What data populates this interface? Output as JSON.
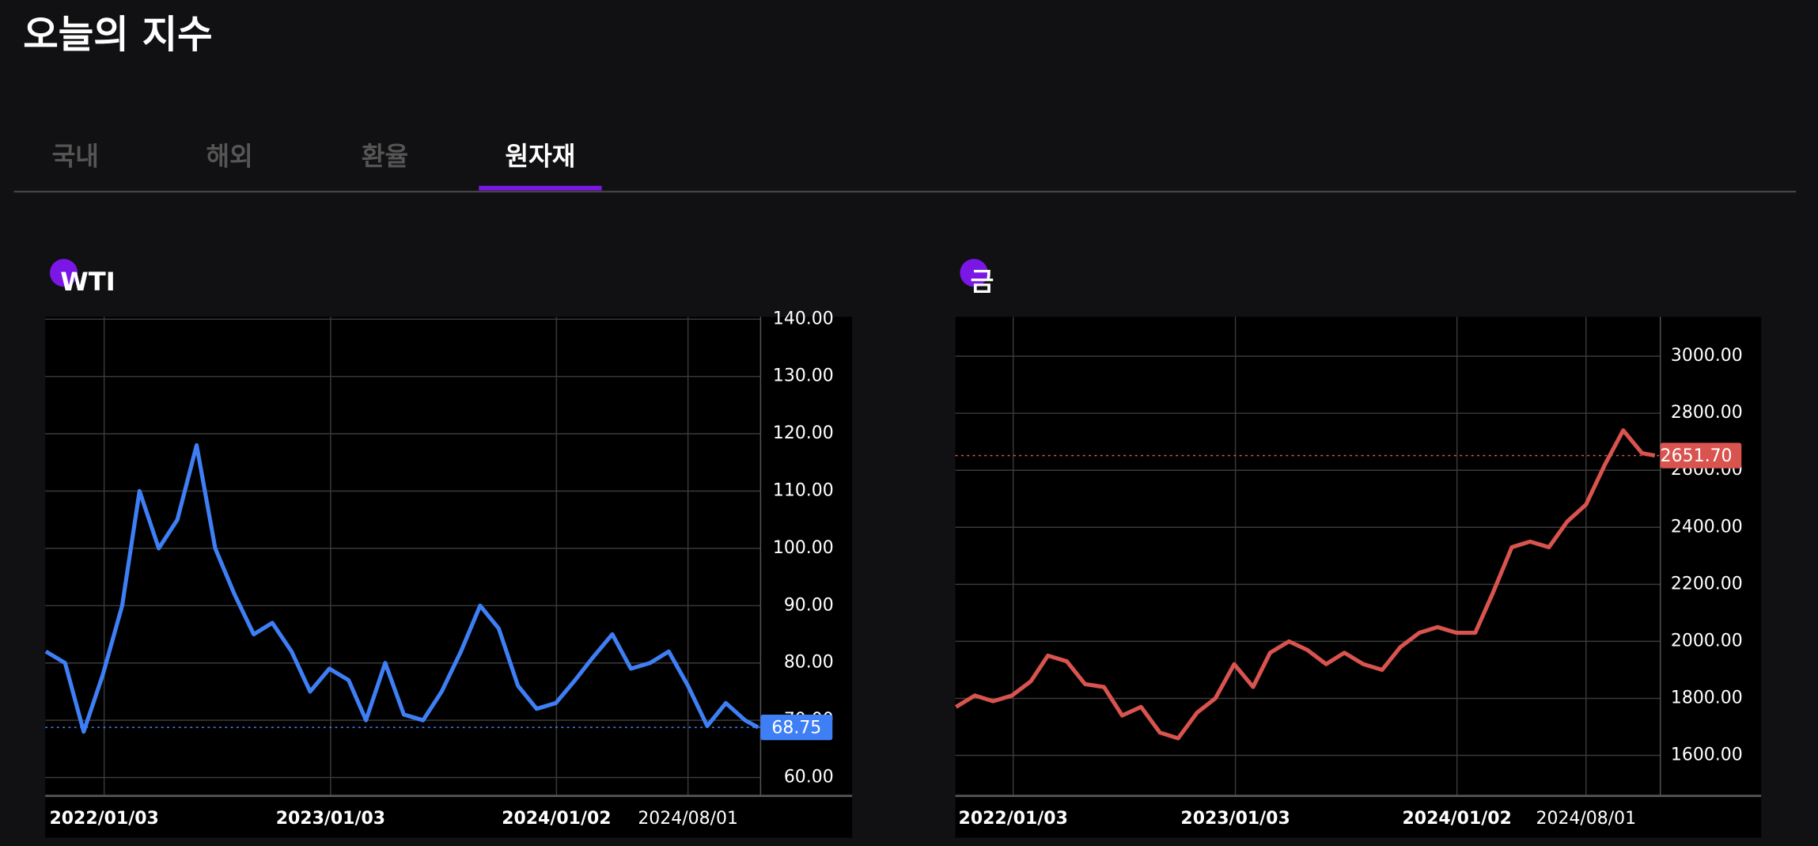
{
  "header": {
    "title": "오늘의 지수"
  },
  "tabs": [
    "국내",
    "해외",
    "환율",
    "원자재"
  ],
  "active_tab": 3,
  "chart_data": [
    {
      "type": "line",
      "title": "WTI",
      "color": "#3f7ff5",
      "x": [
        "2021/10/01",
        "2021/11/01",
        "2021/12/01",
        "2022/01/01",
        "2022/02/01",
        "2022/03/01",
        "2022/04/01",
        "2022/05/01",
        "2022/06/01",
        "2022/07/01",
        "2022/08/01",
        "2022/09/01",
        "2022/10/01",
        "2022/11/01",
        "2022/12/01",
        "2023/01/01",
        "2023/02/01",
        "2023/03/01",
        "2023/04/01",
        "2023/05/01",
        "2023/06/01",
        "2023/07/01",
        "2023/08/01",
        "2023/09/01",
        "2023/10/01",
        "2023/11/01",
        "2023/12/01",
        "2024/01/01",
        "2024/02/01",
        "2024/03/01",
        "2024/04/01",
        "2024/05/01",
        "2024/06/01",
        "2024/07/01",
        "2024/08/01",
        "2024/09/01",
        "2024/10/01",
        "2024/11/01",
        "2024/11/22"
      ],
      "values": [
        82,
        80,
        68,
        78,
        90,
        110,
        100,
        105,
        118,
        100,
        92,
        85,
        87,
        82,
        75,
        79,
        77,
        70,
        80,
        71,
        70,
        75,
        82,
        90,
        86,
        76,
        72,
        73,
        77,
        81,
        85,
        79,
        80,
        82,
        76,
        69,
        73,
        70,
        68.75
      ],
      "current": 68.75,
      "xlim": [
        "2021/09/30",
        "2024/11/26"
      ],
      "xticks": [
        "2022/01/03",
        "2023/01/03",
        "2024/01/02",
        "2024/08/01"
      ],
      "ylim": [
        56.8,
        140.4
      ],
      "yticks": [
        {
          "value": 60,
          "label": "60.00"
        },
        {
          "value": 70,
          "label": "70.00"
        },
        {
          "value": 80,
          "label": "80.00"
        },
        {
          "value": 90,
          "label": "90.00"
        },
        {
          "value": 100,
          "label": "100.00"
        },
        {
          "value": 110,
          "label": "110.00"
        },
        {
          "value": 120,
          "label": "120.00"
        },
        {
          "value": 130,
          "label": "130.00"
        },
        {
          "value": 140,
          "label": "140.00"
        }
      ],
      "grid": true
    },
    {
      "type": "line",
      "title": "금",
      "color": "#d9534f",
      "x": [
        "2021/10/01",
        "2021/11/01",
        "2021/12/01",
        "2022/01/01",
        "2022/02/01",
        "2022/03/01",
        "2022/04/01",
        "2022/05/01",
        "2022/06/01",
        "2022/07/01",
        "2022/08/01",
        "2022/09/01",
        "2022/10/01",
        "2022/11/01",
        "2022/12/01",
        "2023/01/01",
        "2023/02/01",
        "2023/03/01",
        "2023/04/01",
        "2023/05/01",
        "2023/06/01",
        "2023/07/01",
        "2023/08/01",
        "2023/09/01",
        "2023/10/01",
        "2023/11/01",
        "2023/12/01",
        "2024/01/01",
        "2024/02/01",
        "2024/03/01",
        "2024/04/01",
        "2024/05/01",
        "2024/06/01",
        "2024/07/01",
        "2024/08/01",
        "2024/09/01",
        "2024/10/01",
        "2024/11/01",
        "2024/11/22"
      ],
      "values": [
        1770,
        1810,
        1790,
        1810,
        1860,
        1950,
        1930,
        1850,
        1840,
        1740,
        1770,
        1680,
        1660,
        1750,
        1800,
        1920,
        1840,
        1960,
        2000,
        1970,
        1920,
        1960,
        1920,
        1900,
        1980,
        2030,
        2050,
        2030,
        2030,
        2170,
        2330,
        2350,
        2330,
        2420,
        2480,
        2620,
        2740,
        2660,
        2651.7
      ],
      "current": {
        "value": 2651.7,
        "label": "2651.70"
      },
      "xlim": [
        "2021/09/30",
        "2024/12/01"
      ],
      "xticks": [
        "2022/01/03",
        "2023/01/03",
        "2024/01/02",
        "2024/08/01"
      ],
      "ylim": [
        1458,
        3138
      ],
      "yticks": [
        {
          "value": 1600,
          "label": "1600.00"
        },
        {
          "value": 1800,
          "label": "1800.00"
        },
        {
          "value": 2000,
          "label": "2000.00"
        },
        {
          "value": 2200,
          "label": "2200.00"
        },
        {
          "value": 2400,
          "label": "2400.00"
        },
        {
          "value": 2600,
          "label": "2600.00"
        },
        {
          "value": 2800,
          "label": "2800.00"
        },
        {
          "value": 3000,
          "label": "3000.00"
        }
      ],
      "grid": true
    }
  ]
}
